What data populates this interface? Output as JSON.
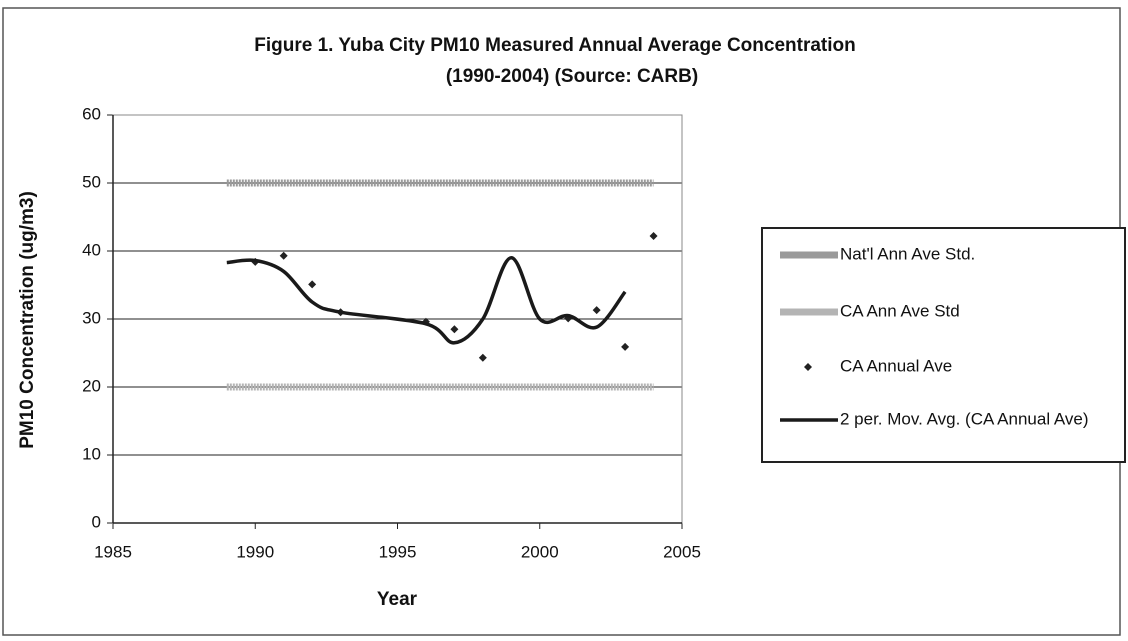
{
  "chart_data": {
    "type": "line",
    "title": "Figure 1.  Yuba City PM10 Measured Annual Average Concentration",
    "subtitle": "(1990-2004) (Source: CARB)",
    "x_label": "Year",
    "y_label": "PM10 Concentration (ug/m3)",
    "xlim": [
      1985,
      2005
    ],
    "xticks": [
      1985,
      1990,
      1995,
      2000,
      2005
    ],
    "ylim": [
      0,
      60
    ],
    "yticks": [
      0,
      10,
      20,
      30,
      40,
      50,
      60
    ],
    "grid": true,
    "legend": "right",
    "series": [
      {
        "name": "Nat'l Ann Ave Std.",
        "type": "line",
        "color": "#9a9a9a",
        "x": [
          1989,
          2004
        ],
        "values": [
          50,
          50
        ]
      },
      {
        "name": "CA Ann Ave Std",
        "type": "line",
        "color": "#b4b4b4",
        "x": [
          1989,
          2004
        ],
        "values": [
          20,
          20
        ]
      },
      {
        "name": "CA Annual Ave",
        "type": "scatter",
        "color": "#222222",
        "x": [
          1990,
          1991,
          1992,
          1993,
          1996,
          1997,
          1998,
          2001,
          2002,
          2003,
          2004
        ],
        "values": [
          38.4,
          39.3,
          35.1,
          31,
          29.6,
          28.5,
          24.3,
          30.1,
          31.3,
          25.9,
          42.2
        ]
      },
      {
        "name": "2 per. Mov. Avg. (CA Annual Ave)",
        "type": "smooth",
        "color": "#1a1a1a",
        "x": [
          1989,
          1990,
          1991,
          1992,
          1993,
          1996,
          1997,
          1998,
          1999,
          2000,
          2001,
          2002,
          2003
        ],
        "values": [
          38.3,
          38.6,
          37,
          32.5,
          31,
          29.3,
          26.5,
          30,
          39,
          30,
          30.5,
          28.8,
          34
        ]
      }
    ]
  }
}
